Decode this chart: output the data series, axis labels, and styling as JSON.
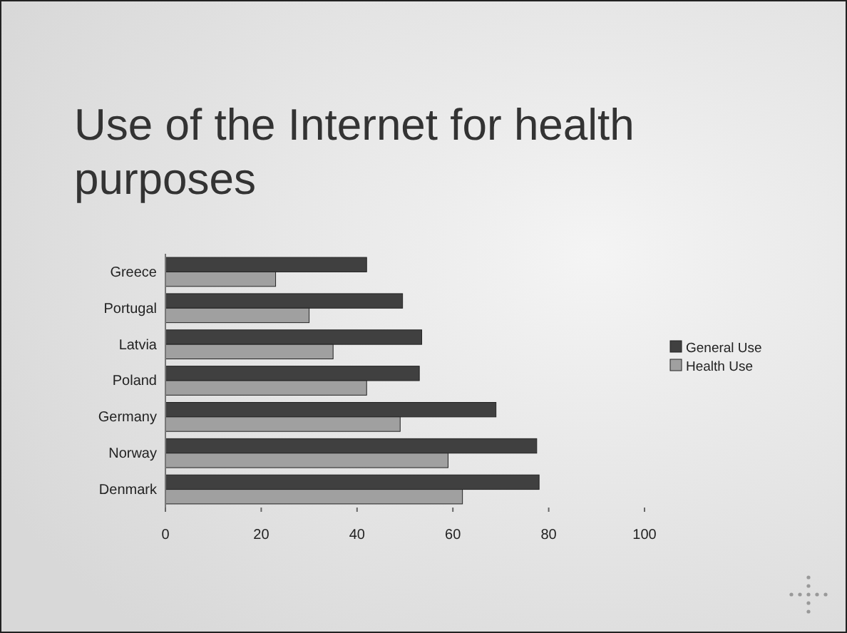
{
  "chart_data": {
    "type": "bar",
    "orientation": "horizontal",
    "title": "Use of the Internet for health purposes",
    "categories": [
      "Greece",
      "Portugal",
      "Latvia",
      "Poland",
      "Germany",
      "Norway",
      "Denmark"
    ],
    "series": [
      {
        "name": "General Use",
        "color": "#404040",
        "values": [
          42,
          49.5,
          53.5,
          53,
          69,
          77.5,
          78
        ]
      },
      {
        "name": "Health Use",
        "color": "#a0a0a0",
        "values": [
          23,
          30,
          35,
          42,
          49,
          59,
          62
        ]
      }
    ],
    "xlim": [
      0,
      100
    ],
    "xticks": [
      0,
      20,
      40,
      60,
      80,
      100
    ],
    "grid": false,
    "legend": "right"
  }
}
